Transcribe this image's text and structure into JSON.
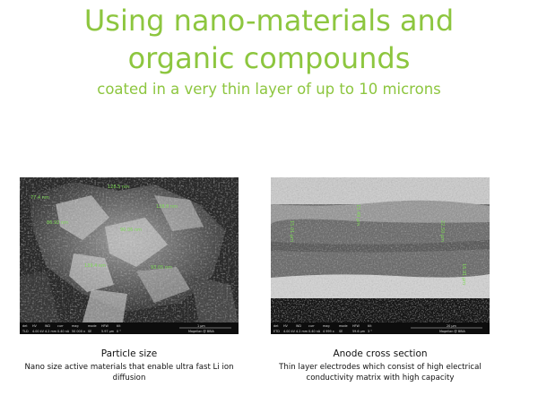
{
  "heading": {
    "line1": "Using nano-materials and",
    "line2": "organic compounds",
    "subtitle": "coated in a very thin layer of up to 10 microns"
  },
  "colors": {
    "accent": "#8dc63f"
  },
  "panels": [
    {
      "title": "Particle size",
      "description": "Nano size active materials that enable ultra fast Li ion diffusion",
      "overlay_labels": [
        "77.4 nm",
        "128.5 nm",
        "128.8 nm",
        "86.92 nm",
        "90.06 nm",
        "139.4 nm",
        "93.05 nm"
      ],
      "infobar": {
        "headers": [
          "det",
          "HV",
          "WD",
          "curr",
          "mag",
          "mode",
          "HFW",
          "tilt"
        ],
        "values": [
          "TLD",
          "4.00 kV",
          "4.2 mm",
          "0.40 nA",
          "50 000 x",
          "SE",
          "5.97 µm",
          "0 °"
        ],
        "scale": "1 µm",
        "brand": "Magellan @ BBIA"
      }
    },
    {
      "title": "Anode cross section",
      "description": "Thin layer electrodes which consist of high electrical conductivity matrix with high capacity",
      "overlay_labels": [
        "15.49 µm",
        "15.01 µm",
        "22.50 µm",
        "16.91 µm"
      ],
      "infobar": {
        "headers": [
          "det",
          "HV",
          "WD",
          "curr",
          "mag",
          "mode",
          "HFW",
          "tilt"
        ],
        "values": [
          "ETD",
          "4.00 kV",
          "4.2 mm",
          "0.40 nA",
          "4 999 x",
          "SE",
          "59.6 µm",
          "3 °"
        ],
        "scale": "20 µm",
        "brand": "Magellan @ BBIA"
      }
    }
  ]
}
